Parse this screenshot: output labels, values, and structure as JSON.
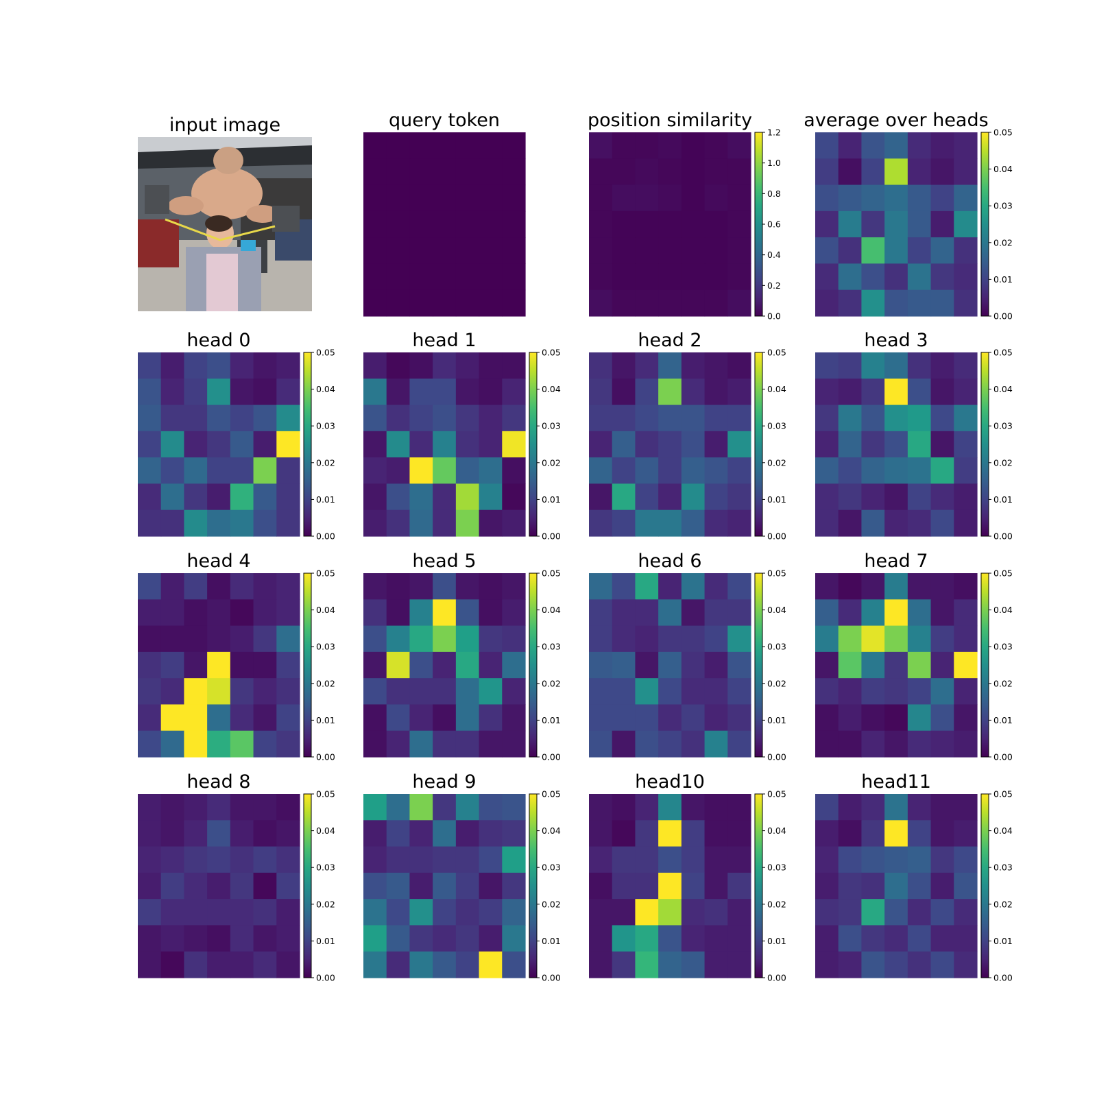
{
  "panels": {
    "input_image": {
      "title": "input image",
      "photo": "input-photo"
    },
    "query_token": {
      "title": "query token"
    },
    "position_similarity": {
      "title": "position similarity",
      "colorbar_ticks": [
        "0.0",
        "0.2",
        "0.4",
        "0.6",
        "0.8",
        "1.0",
        "1.2"
      ]
    },
    "average": {
      "title": "average over heads"
    }
  },
  "colorscale": {
    "name": "viridis",
    "attention_ticks": [
      "0.00",
      "0.01",
      "0.02",
      "0.03",
      "0.04",
      "0.05"
    ]
  },
  "chart_data": [
    {
      "type": "heatmap",
      "name": "query token",
      "vmin": 0,
      "vmax": 1,
      "values": [
        [
          0,
          0,
          0,
          0,
          0,
          0,
          0
        ],
        [
          0,
          0,
          0,
          0,
          0,
          0,
          0
        ],
        [
          0,
          0,
          0,
          0,
          0,
          0,
          0
        ],
        [
          0,
          0,
          0,
          0,
          0,
          0,
          0
        ],
        [
          0,
          0,
          0,
          0,
          0,
          0,
          0
        ],
        [
          0,
          0,
          0,
          0,
          0,
          0,
          0
        ],
        [
          0,
          0,
          0,
          0,
          0,
          0,
          0
        ]
      ]
    },
    {
      "type": "heatmap",
      "name": "position similarity",
      "vmin": 0,
      "vmax": 1.2,
      "values": [
        [
          0.05,
          0.02,
          0.02,
          0.03,
          0.01,
          0.02,
          0.04
        ],
        [
          0.02,
          0.02,
          0.03,
          0.02,
          0.01,
          0.02,
          0.02
        ],
        [
          0.02,
          0.04,
          0.04,
          0.03,
          0.01,
          0.03,
          0.02
        ],
        [
          0.02,
          0.01,
          0.01,
          0.01,
          0.01,
          0.01,
          0.02
        ],
        [
          0.02,
          0.01,
          0.01,
          0.01,
          0.01,
          0.01,
          0.02
        ],
        [
          0.02,
          0.01,
          0.01,
          0.01,
          0.01,
          0.01,
          0.02
        ],
        [
          0.04,
          0.02,
          0.02,
          0.02,
          0.02,
          0.02,
          0.04
        ]
      ]
    },
    {
      "type": "heatmap",
      "name": "average over heads",
      "vmin": 0,
      "vmax": 0.05,
      "values": [
        [
          0.011,
          0.005,
          0.013,
          0.016,
          0.006,
          0.004,
          0.005
        ],
        [
          0.009,
          0.002,
          0.01,
          0.044,
          0.005,
          0.003,
          0.005
        ],
        [
          0.012,
          0.014,
          0.016,
          0.018,
          0.014,
          0.01,
          0.016
        ],
        [
          0.006,
          0.021,
          0.008,
          0.02,
          0.014,
          0.004,
          0.024
        ],
        [
          0.012,
          0.007,
          0.035,
          0.02,
          0.01,
          0.016,
          0.007
        ],
        [
          0.006,
          0.018,
          0.012,
          0.007,
          0.019,
          0.008,
          0.006
        ],
        [
          0.005,
          0.007,
          0.025,
          0.013,
          0.014,
          0.014,
          0.007
        ]
      ]
    },
    {
      "type": "heatmap",
      "name": "head 0",
      "title": "head 0",
      "vmin": 0,
      "vmax": 0.05,
      "values": [
        [
          0.01,
          0.004,
          0.01,
          0.012,
          0.005,
          0.003,
          0.004
        ],
        [
          0.013,
          0.005,
          0.009,
          0.025,
          0.003,
          0.002,
          0.006
        ],
        [
          0.014,
          0.008,
          0.008,
          0.013,
          0.01,
          0.013,
          0.024
        ],
        [
          0.01,
          0.024,
          0.005,
          0.008,
          0.014,
          0.004,
          0.05
        ],
        [
          0.016,
          0.011,
          0.017,
          0.01,
          0.01,
          0.04,
          0.008
        ],
        [
          0.006,
          0.018,
          0.008,
          0.004,
          0.032,
          0.014,
          0.008
        ],
        [
          0.007,
          0.007,
          0.024,
          0.018,
          0.02,
          0.012,
          0.008
        ]
      ]
    },
    {
      "type": "heatmap",
      "name": "head 1",
      "title": "head 1",
      "vmin": 0,
      "vmax": 0.05,
      "values": [
        [
          0.004,
          0.001,
          0.002,
          0.006,
          0.004,
          0.002,
          0.002
        ],
        [
          0.02,
          0.003,
          0.011,
          0.011,
          0.003,
          0.002,
          0.005
        ],
        [
          0.013,
          0.007,
          0.01,
          0.012,
          0.008,
          0.005,
          0.008
        ],
        [
          0.003,
          0.024,
          0.006,
          0.022,
          0.007,
          0.005,
          0.049
        ],
        [
          0.005,
          0.004,
          0.05,
          0.038,
          0.015,
          0.018,
          0.002
        ],
        [
          0.003,
          0.012,
          0.018,
          0.006,
          0.043,
          0.022,
          0.001
        ],
        [
          0.004,
          0.007,
          0.017,
          0.006,
          0.04,
          0.003,
          0.004
        ]
      ]
    },
    {
      "type": "heatmap",
      "name": "head 2",
      "title": "head 2",
      "vmin": 0,
      "vmax": 0.05,
      "values": [
        [
          0.007,
          0.003,
          0.006,
          0.016,
          0.004,
          0.003,
          0.002
        ],
        [
          0.008,
          0.002,
          0.01,
          0.04,
          0.006,
          0.003,
          0.004
        ],
        [
          0.009,
          0.009,
          0.011,
          0.013,
          0.013,
          0.01,
          0.01
        ],
        [
          0.005,
          0.015,
          0.007,
          0.009,
          0.012,
          0.004,
          0.025
        ],
        [
          0.016,
          0.01,
          0.014,
          0.009,
          0.015,
          0.013,
          0.01
        ],
        [
          0.003,
          0.03,
          0.01,
          0.005,
          0.024,
          0.01,
          0.008
        ],
        [
          0.008,
          0.01,
          0.02,
          0.02,
          0.015,
          0.006,
          0.005
        ]
      ]
    },
    {
      "type": "heatmap",
      "name": "head 3",
      "title": "head 3",
      "vmin": 0,
      "vmax": 0.05,
      "values": [
        [
          0.01,
          0.009,
          0.022,
          0.018,
          0.007,
          0.004,
          0.006
        ],
        [
          0.005,
          0.004,
          0.008,
          0.05,
          0.012,
          0.003,
          0.005
        ],
        [
          0.008,
          0.02,
          0.013,
          0.025,
          0.027,
          0.011,
          0.02
        ],
        [
          0.005,
          0.016,
          0.008,
          0.012,
          0.03,
          0.003,
          0.01
        ],
        [
          0.015,
          0.011,
          0.016,
          0.018,
          0.019,
          0.03,
          0.009
        ],
        [
          0.006,
          0.008,
          0.005,
          0.003,
          0.01,
          0.006,
          0.004
        ],
        [
          0.006,
          0.003,
          0.014,
          0.005,
          0.006,
          0.011,
          0.004
        ]
      ]
    },
    {
      "type": "heatmap",
      "name": "head 4",
      "title": "head 4",
      "vmin": 0,
      "vmax": 0.05,
      "values": [
        [
          0.011,
          0.004,
          0.009,
          0.002,
          0.006,
          0.004,
          0.005
        ],
        [
          0.004,
          0.004,
          0.002,
          0.003,
          0.001,
          0.004,
          0.005
        ],
        [
          0.002,
          0.002,
          0.002,
          0.003,
          0.004,
          0.008,
          0.018
        ],
        [
          0.007,
          0.009,
          0.003,
          0.05,
          0.002,
          0.002,
          0.009
        ],
        [
          0.008,
          0.006,
          0.05,
          0.047,
          0.008,
          0.005,
          0.007
        ],
        [
          0.006,
          0.05,
          0.05,
          0.018,
          0.006,
          0.003,
          0.01
        ],
        [
          0.011,
          0.017,
          0.05,
          0.031,
          0.037,
          0.01,
          0.008
        ]
      ]
    },
    {
      "type": "heatmap",
      "name": "head 5",
      "title": "head 5",
      "vmin": 0,
      "vmax": 0.05,
      "values": [
        [
          0.003,
          0.002,
          0.003,
          0.012,
          0.003,
          0.002,
          0.003
        ],
        [
          0.007,
          0.002,
          0.022,
          0.05,
          0.013,
          0.002,
          0.004
        ],
        [
          0.012,
          0.022,
          0.03,
          0.04,
          0.028,
          0.008,
          0.007
        ],
        [
          0.003,
          0.047,
          0.012,
          0.005,
          0.03,
          0.005,
          0.018
        ],
        [
          0.011,
          0.007,
          0.007,
          0.007,
          0.018,
          0.026,
          0.005
        ],
        [
          0.002,
          0.011,
          0.005,
          0.002,
          0.018,
          0.007,
          0.003
        ],
        [
          0.002,
          0.005,
          0.018,
          0.007,
          0.007,
          0.003,
          0.003
        ]
      ]
    },
    {
      "type": "heatmap",
      "name": "head 6",
      "title": "head 6",
      "vmin": 0,
      "vmax": 0.05,
      "values": [
        [
          0.017,
          0.011,
          0.03,
          0.005,
          0.019,
          0.006,
          0.011
        ],
        [
          0.009,
          0.006,
          0.006,
          0.018,
          0.003,
          0.008,
          0.008
        ],
        [
          0.009,
          0.006,
          0.005,
          0.008,
          0.008,
          0.01,
          0.025
        ],
        [
          0.014,
          0.015,
          0.003,
          0.015,
          0.007,
          0.004,
          0.013
        ],
        [
          0.011,
          0.011,
          0.025,
          0.011,
          0.006,
          0.006,
          0.01
        ],
        [
          0.011,
          0.011,
          0.011,
          0.006,
          0.009,
          0.005,
          0.007
        ],
        [
          0.012,
          0.003,
          0.012,
          0.01,
          0.007,
          0.022,
          0.01
        ]
      ]
    },
    {
      "type": "heatmap",
      "name": "head 7",
      "title": "head 7",
      "vmin": 0,
      "vmax": 0.05,
      "values": [
        [
          0.003,
          0.001,
          0.003,
          0.021,
          0.003,
          0.003,
          0.002
        ],
        [
          0.015,
          0.006,
          0.022,
          0.05,
          0.018,
          0.003,
          0.006
        ],
        [
          0.021,
          0.04,
          0.048,
          0.04,
          0.022,
          0.009,
          0.006
        ],
        [
          0.003,
          0.037,
          0.02,
          0.008,
          0.04,
          0.005,
          0.05
        ],
        [
          0.007,
          0.005,
          0.009,
          0.008,
          0.01,
          0.018,
          0.005
        ],
        [
          0.002,
          0.004,
          0.002,
          0.001,
          0.023,
          0.012,
          0.003
        ],
        [
          0.002,
          0.002,
          0.005,
          0.003,
          0.006,
          0.005,
          0.004
        ]
      ]
    },
    {
      "type": "heatmap",
      "name": "head 8",
      "title": "head 8",
      "vmin": 0,
      "vmax": 0.05,
      "values": [
        [
          0.004,
          0.003,
          0.004,
          0.006,
          0.003,
          0.003,
          0.002
        ],
        [
          0.004,
          0.003,
          0.005,
          0.012,
          0.004,
          0.002,
          0.003
        ],
        [
          0.005,
          0.006,
          0.008,
          0.009,
          0.007,
          0.009,
          0.007
        ],
        [
          0.004,
          0.009,
          0.006,
          0.004,
          0.008,
          0.001,
          0.009
        ],
        [
          0.009,
          0.006,
          0.006,
          0.006,
          0.006,
          0.007,
          0.004
        ],
        [
          0.003,
          0.004,
          0.003,
          0.002,
          0.006,
          0.003,
          0.004
        ],
        [
          0.003,
          0.001,
          0.007,
          0.004,
          0.004,
          0.006,
          0.003
        ]
      ]
    },
    {
      "type": "heatmap",
      "name": "head 9",
      "title": "head 9",
      "vmin": 0,
      "vmax": 0.05,
      "values": [
        [
          0.028,
          0.018,
          0.04,
          0.008,
          0.022,
          0.012,
          0.013
        ],
        [
          0.004,
          0.01,
          0.005,
          0.018,
          0.004,
          0.007,
          0.008
        ],
        [
          0.005,
          0.007,
          0.007,
          0.008,
          0.008,
          0.011,
          0.028
        ],
        [
          0.012,
          0.014,
          0.004,
          0.014,
          0.009,
          0.003,
          0.008
        ],
        [
          0.019,
          0.011,
          0.025,
          0.01,
          0.007,
          0.009,
          0.016
        ],
        [
          0.028,
          0.014,
          0.008,
          0.006,
          0.008,
          0.004,
          0.02
        ],
        [
          0.02,
          0.006,
          0.02,
          0.014,
          0.01,
          0.05,
          0.012
        ]
      ]
    },
    {
      "type": "heatmap",
      "name": "head10",
      "title": "head10",
      "vmin": 0,
      "vmax": 0.05,
      "values": [
        [
          0.003,
          0.002,
          0.005,
          0.023,
          0.003,
          0.002,
          0.002
        ],
        [
          0.003,
          0.001,
          0.008,
          0.05,
          0.009,
          0.002,
          0.002
        ],
        [
          0.005,
          0.008,
          0.008,
          0.012,
          0.009,
          0.003,
          0.003
        ],
        [
          0.002,
          0.007,
          0.007,
          0.05,
          0.01,
          0.003,
          0.008
        ],
        [
          0.003,
          0.003,
          0.05,
          0.043,
          0.006,
          0.007,
          0.004
        ],
        [
          0.003,
          0.026,
          0.03,
          0.013,
          0.005,
          0.004,
          0.004
        ],
        [
          0.003,
          0.008,
          0.033,
          0.016,
          0.014,
          0.004,
          0.004
        ]
      ]
    },
    {
      "type": "heatmap",
      "name": "head11",
      "title": "head11",
      "vmin": 0,
      "vmax": 0.05,
      "values": [
        [
          0.01,
          0.004,
          0.006,
          0.019,
          0.005,
          0.003,
          0.003
        ],
        [
          0.004,
          0.002,
          0.008,
          0.05,
          0.01,
          0.003,
          0.004
        ],
        [
          0.005,
          0.011,
          0.013,
          0.014,
          0.015,
          0.008,
          0.011
        ],
        [
          0.004,
          0.008,
          0.007,
          0.018,
          0.012,
          0.004,
          0.013
        ],
        [
          0.007,
          0.008,
          0.03,
          0.013,
          0.006,
          0.011,
          0.006
        ],
        [
          0.004,
          0.012,
          0.008,
          0.006,
          0.011,
          0.005,
          0.005
        ],
        [
          0.004,
          0.005,
          0.013,
          0.01,
          0.007,
          0.011,
          0.006
        ]
      ]
    }
  ]
}
